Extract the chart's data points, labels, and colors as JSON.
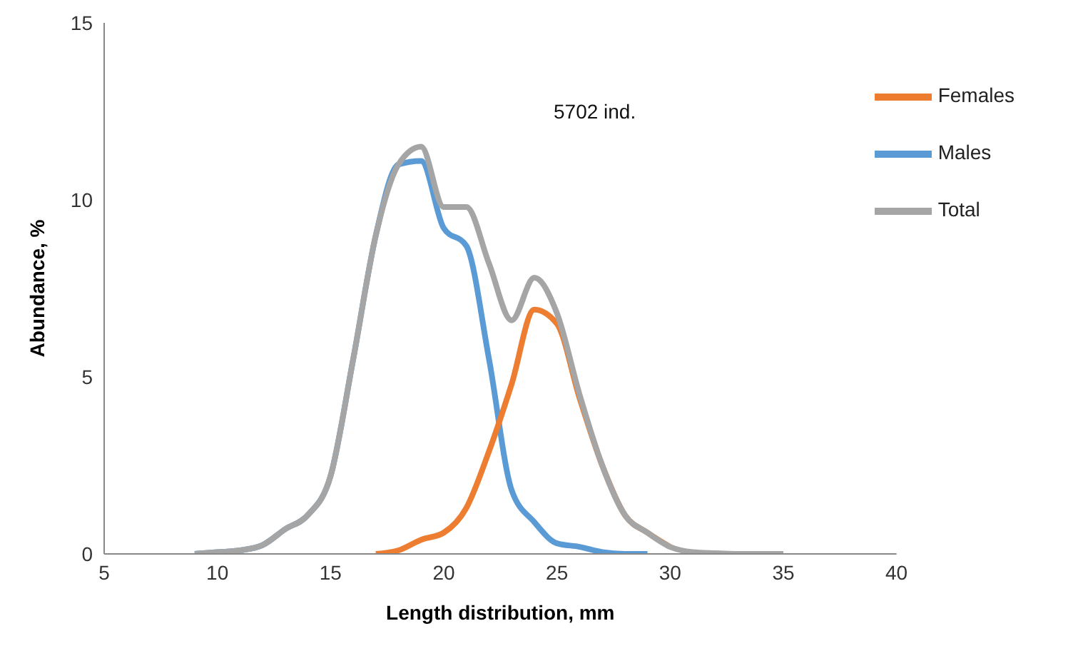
{
  "chart_data": {
    "type": "line",
    "xlabel": "Length distribution,  mm",
    "ylabel": "Abundance, %",
    "annotations": [
      "5702 ind."
    ],
    "xlim": [
      5,
      40
    ],
    "xticks": [
      5,
      10,
      15,
      20,
      25,
      30,
      35,
      40
    ],
    "ylim": [
      0,
      15
    ],
    "yticks": [
      0,
      5,
      10,
      15
    ],
    "grid": false,
    "legend": "top right",
    "marker": "none",
    "line_style": "solid",
    "series": [
      {
        "name": "Males",
        "color": "#5b9bd5",
        "x": [
          9,
          10,
          11,
          12,
          13,
          14,
          15,
          16,
          17,
          18,
          19,
          20,
          21,
          22,
          23,
          24,
          25,
          26,
          27,
          28,
          29
        ],
        "values": [
          0,
          0.05,
          0.1,
          0.25,
          0.7,
          1.1,
          2.2,
          5.5,
          9.0,
          11.0,
          11.1,
          9.2,
          8.7,
          5.5,
          1.8,
          0.9,
          0.3,
          0.2,
          0.05,
          0,
          0
        ]
      },
      {
        "name": "Females",
        "color": "#ed7d31",
        "x": [
          17,
          18,
          19,
          20,
          21,
          22,
          23,
          24,
          25,
          26,
          27,
          28,
          29,
          30
        ],
        "values": [
          0,
          0.1,
          0.4,
          0.6,
          1.3,
          2.9,
          4.8,
          6.9,
          6.5,
          4.4,
          2.5,
          1.1,
          0.6,
          0.2
        ]
      },
      {
        "name": "Total",
        "color": "#a5a5a5",
        "x": [
          9,
          10,
          11,
          12,
          13,
          14,
          15,
          16,
          17,
          18,
          19,
          20,
          21,
          22,
          23,
          24,
          25,
          26,
          27,
          28,
          29,
          30,
          31,
          32,
          33,
          34,
          35
        ],
        "values": [
          0,
          0.05,
          0.1,
          0.25,
          0.7,
          1.1,
          2.2,
          5.5,
          9.0,
          11.0,
          11.5,
          9.8,
          9.8,
          8.2,
          6.6,
          7.8,
          6.8,
          4.5,
          2.5,
          1.1,
          0.6,
          0.2,
          0.05,
          0.02,
          0,
          0,
          0
        ]
      }
    ]
  }
}
